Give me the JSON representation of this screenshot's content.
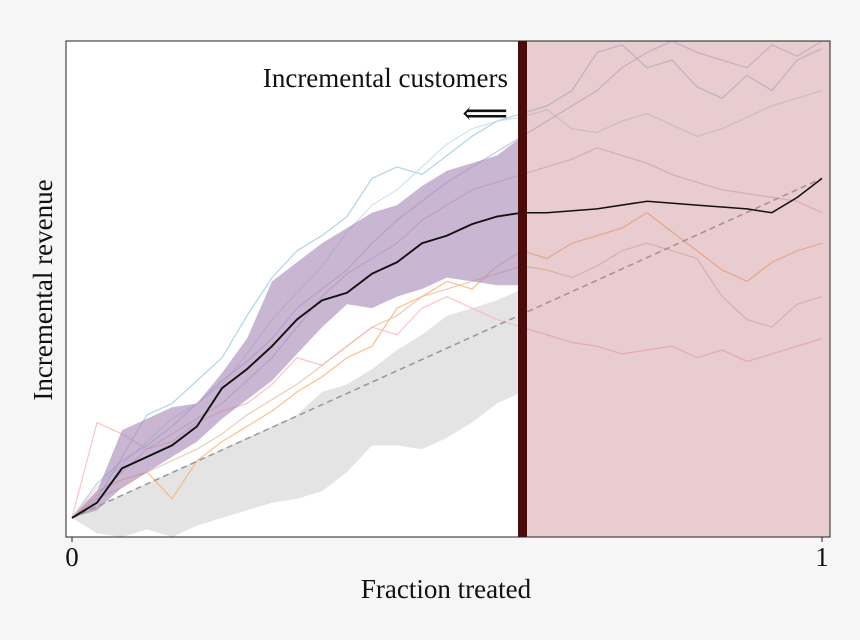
{
  "chart_data": {
    "type": "line",
    "title": "",
    "xlabel": "Fraction treated",
    "ylabel": "Incremental revenue",
    "xlim": [
      0,
      1
    ],
    "ylim": [
      -0.05,
      1.25
    ],
    "x_tick_labels": [
      "0",
      "1"
    ],
    "grid": false,
    "legend": "none",
    "annotation": {
      "text": "Incremental customers",
      "arrow": "⟸"
    },
    "highlight_region": {
      "x_start": 0.6,
      "x_end": 1.0,
      "boundary_x": 0.6
    },
    "x": [
      0,
      0.0333,
      0.0667,
      0.1,
      0.1333,
      0.1667,
      0.2,
      0.2333,
      0.2667,
      0.3,
      0.3333,
      0.3667,
      0.4,
      0.4333,
      0.4667,
      0.5,
      0.5333,
      0.5667,
      0.6
    ],
    "mean_line": [
      0,
      0.04,
      0.13,
      0.16,
      0.19,
      0.24,
      0.34,
      0.39,
      0.45,
      0.52,
      0.57,
      0.59,
      0.64,
      0.67,
      0.72,
      0.74,
      0.77,
      0.79,
      0.8
    ],
    "band_upper": [
      0,
      0.07,
      0.23,
      0.26,
      0.29,
      0.3,
      0.38,
      0.47,
      0.62,
      0.67,
      0.72,
      0.76,
      0.8,
      0.82,
      0.87,
      0.91,
      0.93,
      0.95,
      1.0
    ],
    "band_lower": [
      0,
      0.02,
      0.08,
      0.12,
      0.16,
      0.2,
      0.26,
      0.31,
      0.36,
      0.43,
      0.5,
      0.56,
      0.55,
      0.58,
      0.6,
      0.63,
      0.62,
      0.61,
      0.61
    ],
    "mean_continued": {
      "x": [
        0.6,
        0.633,
        0.7,
        0.767,
        0.833,
        0.9,
        0.933,
        0.967,
        1.0
      ],
      "y": [
        0.8,
        0.8,
        0.81,
        0.83,
        0.82,
        0.81,
        0.8,
        0.84,
        0.89
      ]
    },
    "random_baseline": {
      "x": [
        0,
        1
      ],
      "y": [
        0,
        0.89
      ]
    },
    "random_band_upper": [
      0,
      0.03,
      0.06,
      0.09,
      0.12,
      0.15,
      0.18,
      0.21,
      0.24,
      0.27,
      0.33,
      0.35,
      0.39,
      0.44,
      0.48,
      0.53,
      0.55,
      0.57,
      0.6
    ],
    "random_band_lower": [
      0,
      -0.04,
      -0.05,
      -0.03,
      -0.05,
      -0.02,
      0.0,
      0.02,
      0.04,
      0.05,
      0.07,
      0.12,
      0.19,
      0.19,
      0.18,
      0.21,
      0.25,
      0.3,
      0.33
    ],
    "individual_runs": [
      {
        "color": "#9ecae1",
        "values": [
          0,
          0.05,
          0.16,
          0.27,
          0.3,
          0.36,
          0.42,
          0.53,
          0.63,
          0.7,
          0.74,
          0.79,
          0.89,
          0.92,
          0.9,
          0.95,
          1.0,
          1.04,
          1.06,
          1.08,
          1.12,
          1.22,
          1.24,
          1.18,
          1.2,
          1.13,
          1.1,
          1.16,
          1.12,
          1.2,
          1.23
        ]
      },
      {
        "color": "#c6dbef",
        "values": [
          0,
          0.08,
          0.14,
          0.2,
          0.26,
          0.3,
          0.35,
          0.43,
          0.52,
          0.59,
          0.66,
          0.75,
          0.82,
          0.86,
          0.92,
          0.98,
          1.02,
          1.04,
          1.05,
          1.07,
          1.02,
          1.01,
          1.04,
          1.06,
          1.03,
          1.0,
          1.02,
          1.05,
          1.08,
          1.1,
          1.12
        ]
      },
      {
        "color": "#fdae6b",
        "values": [
          0,
          0.07,
          0.1,
          0.12,
          0.05,
          0.15,
          0.2,
          0.24,
          0.28,
          0.33,
          0.37,
          0.42,
          0.45,
          0.55,
          0.58,
          0.62,
          0.6,
          0.66,
          0.7,
          0.68,
          0.72,
          0.74,
          0.76,
          0.8,
          0.75,
          0.7,
          0.65,
          0.62,
          0.67,
          0.7,
          0.72
        ]
      },
      {
        "color": "#fbb4b9",
        "values": [
          0,
          0.25,
          0.22,
          0.18,
          0.2,
          0.25,
          0.28,
          0.3,
          0.35,
          0.42,
          0.4,
          0.45,
          0.5,
          0.48,
          0.55,
          0.58,
          0.55,
          0.52,
          0.5,
          0.48,
          0.46,
          0.45,
          0.43,
          0.44,
          0.45,
          0.42,
          0.44,
          0.41,
          0.43,
          0.45,
          0.47
        ]
      },
      {
        "color": "#d9b3d9",
        "values": [
          0,
          0.06,
          0.12,
          0.18,
          0.22,
          0.26,
          0.3,
          0.36,
          0.42,
          0.5,
          0.58,
          0.64,
          0.68,
          0.72,
          0.78,
          0.82,
          0.86,
          0.88,
          0.9,
          0.92,
          0.94,
          0.97,
          0.95,
          0.93,
          0.9,
          0.88,
          0.86,
          0.85,
          0.84,
          0.83,
          0.8
        ]
      },
      {
        "color": "#e6bfa6",
        "values": [
          0,
          0.05,
          0.08,
          0.12,
          0.15,
          0.18,
          0.22,
          0.27,
          0.31,
          0.35,
          0.4,
          0.45,
          0.5,
          0.53,
          0.58,
          0.6,
          0.62,
          0.64,
          0.66,
          0.65,
          0.63,
          0.66,
          0.7,
          0.72,
          0.7,
          0.68,
          0.58,
          0.52,
          0.5,
          0.56,
          0.58
        ]
      },
      {
        "color": "#bcbddc",
        "values": [
          0,
          0.09,
          0.15,
          0.19,
          0.24,
          0.3,
          0.36,
          0.41,
          0.47,
          0.55,
          0.6,
          0.65,
          0.72,
          0.78,
          0.83,
          0.88,
          0.92,
          0.96,
          1.0,
          1.04,
          1.08,
          1.12,
          1.18,
          1.22,
          1.25,
          1.22,
          1.2,
          1.18,
          1.24,
          1.21,
          1.25
        ]
      }
    ]
  }
}
